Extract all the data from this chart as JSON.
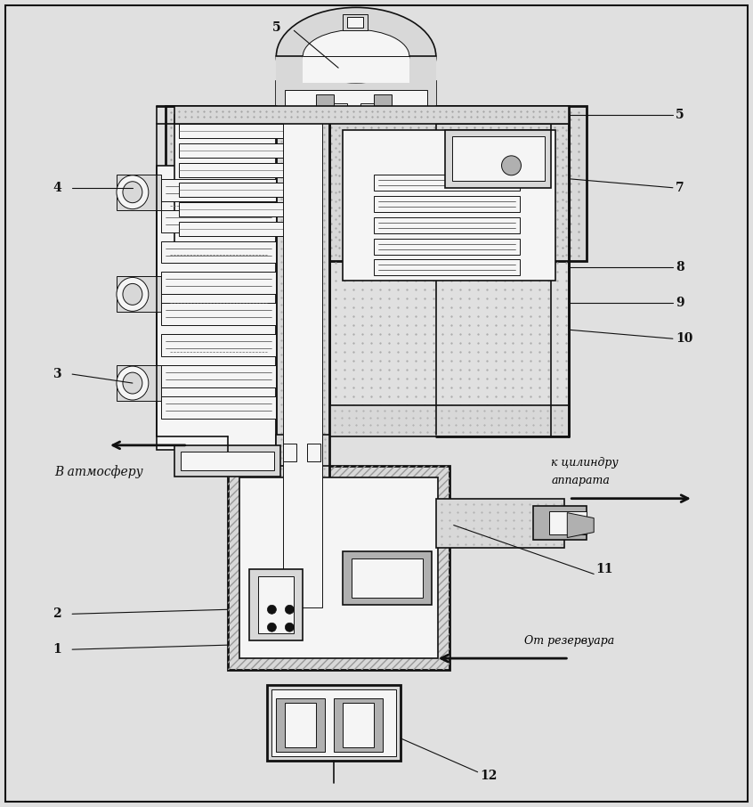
{
  "bg_color": "#e0e0e0",
  "fig_width": 8.46,
  "fig_height": 9.06,
  "text_atm": "В атмосферу",
  "text_cyl_1": "к цилиндру",
  "text_cyl_2": "аппарата",
  "text_res": "От резервуара"
}
